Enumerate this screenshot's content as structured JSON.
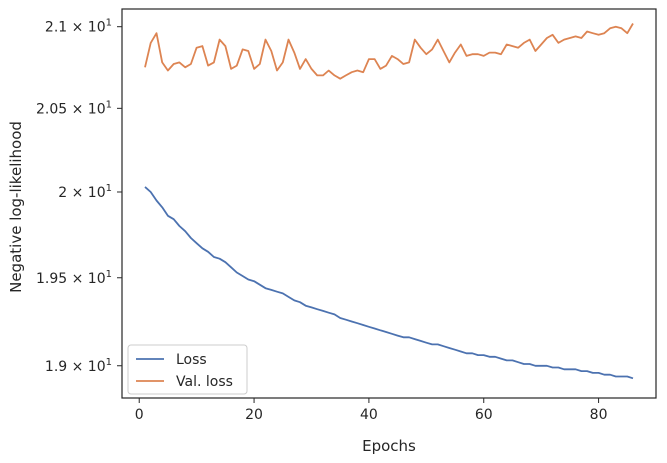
{
  "chart_data": {
    "type": "line",
    "xlabel": "Epochs",
    "ylabel": "Negative log-likelihood",
    "xlim": [
      -3,
      90
    ],
    "ylim": [
      18.82,
      21.11
    ],
    "yscale": "log",
    "x_ticks": [
      0,
      20,
      40,
      60,
      80
    ],
    "x_tick_labels": [
      "0",
      "20",
      "40",
      "60",
      "80"
    ],
    "y_ticks": [
      {
        "value": 19.0,
        "mantissa": "1.9",
        "exp": "1"
      },
      {
        "value": 19.5,
        "mantissa": "1.95",
        "exp": "1"
      },
      {
        "value": 20.0,
        "mantissa": "2",
        "exp": "1"
      },
      {
        "value": 20.5,
        "mantissa": "2.05",
        "exp": "1"
      },
      {
        "value": 21.0,
        "mantissa": "2.1",
        "exp": "1"
      }
    ],
    "grid": false,
    "legend_position": "lower-left",
    "x": [
      1,
      2,
      3,
      4,
      5,
      6,
      7,
      8,
      9,
      10,
      11,
      12,
      13,
      14,
      15,
      16,
      17,
      18,
      19,
      20,
      21,
      22,
      23,
      24,
      25,
      26,
      27,
      28,
      29,
      30,
      31,
      32,
      33,
      34,
      35,
      36,
      37,
      38,
      39,
      40,
      41,
      42,
      43,
      44,
      45,
      46,
      47,
      48,
      49,
      50,
      51,
      52,
      53,
      54,
      55,
      56,
      57,
      58,
      59,
      60,
      61,
      62,
      63,
      64,
      65,
      66,
      67,
      68,
      69,
      70,
      71,
      72,
      73,
      74,
      75,
      76,
      77,
      78,
      79,
      80,
      81,
      82,
      83,
      84,
      85,
      86
    ],
    "series": [
      {
        "name": "Loss",
        "color": "#4c72b0",
        "values": [
          20.03,
          20.0,
          19.95,
          19.91,
          19.86,
          19.84,
          19.8,
          19.77,
          19.73,
          19.7,
          19.67,
          19.65,
          19.62,
          19.61,
          19.59,
          19.56,
          19.53,
          19.51,
          19.49,
          19.48,
          19.46,
          19.44,
          19.43,
          19.42,
          19.41,
          19.39,
          19.37,
          19.36,
          19.34,
          19.33,
          19.32,
          19.31,
          19.3,
          19.29,
          19.27,
          19.26,
          19.25,
          19.24,
          19.23,
          19.22,
          19.21,
          19.2,
          19.19,
          19.18,
          19.17,
          19.16,
          19.16,
          19.15,
          19.14,
          19.13,
          19.12,
          19.12,
          19.11,
          19.1,
          19.09,
          19.08,
          19.07,
          19.07,
          19.06,
          19.06,
          19.05,
          19.05,
          19.04,
          19.03,
          19.03,
          19.02,
          19.01,
          19.01,
          19.0,
          19.0,
          19.0,
          18.99,
          18.99,
          18.98,
          18.98,
          18.98,
          18.97,
          18.97,
          18.96,
          18.96,
          18.95,
          18.95,
          18.94,
          18.94,
          18.94,
          18.93
        ]
      },
      {
        "name": "Val. loss",
        "color": "#dd8452",
        "values": [
          20.75,
          20.9,
          20.96,
          20.78,
          20.73,
          20.77,
          20.78,
          20.75,
          20.77,
          20.87,
          20.88,
          20.76,
          20.78,
          20.92,
          20.88,
          20.74,
          20.76,
          20.86,
          20.85,
          20.74,
          20.77,
          20.92,
          20.85,
          20.73,
          20.78,
          20.92,
          20.84,
          20.74,
          20.8,
          20.74,
          20.7,
          20.7,
          20.73,
          20.7,
          20.68,
          20.7,
          20.72,
          20.73,
          20.72,
          20.8,
          20.8,
          20.74,
          20.76,
          20.82,
          20.8,
          20.77,
          20.78,
          20.92,
          20.87,
          20.83,
          20.86,
          20.92,
          20.85,
          20.78,
          20.84,
          20.89,
          20.82,
          20.83,
          20.83,
          20.82,
          20.84,
          20.84,
          20.83,
          20.89,
          20.88,
          20.87,
          20.9,
          20.92,
          20.85,
          20.89,
          20.93,
          20.95,
          20.9,
          20.92,
          20.93,
          20.94,
          20.93,
          20.97,
          20.96,
          20.95,
          20.96,
          20.99,
          21.0,
          20.99,
          20.96,
          21.02
        ]
      }
    ]
  }
}
